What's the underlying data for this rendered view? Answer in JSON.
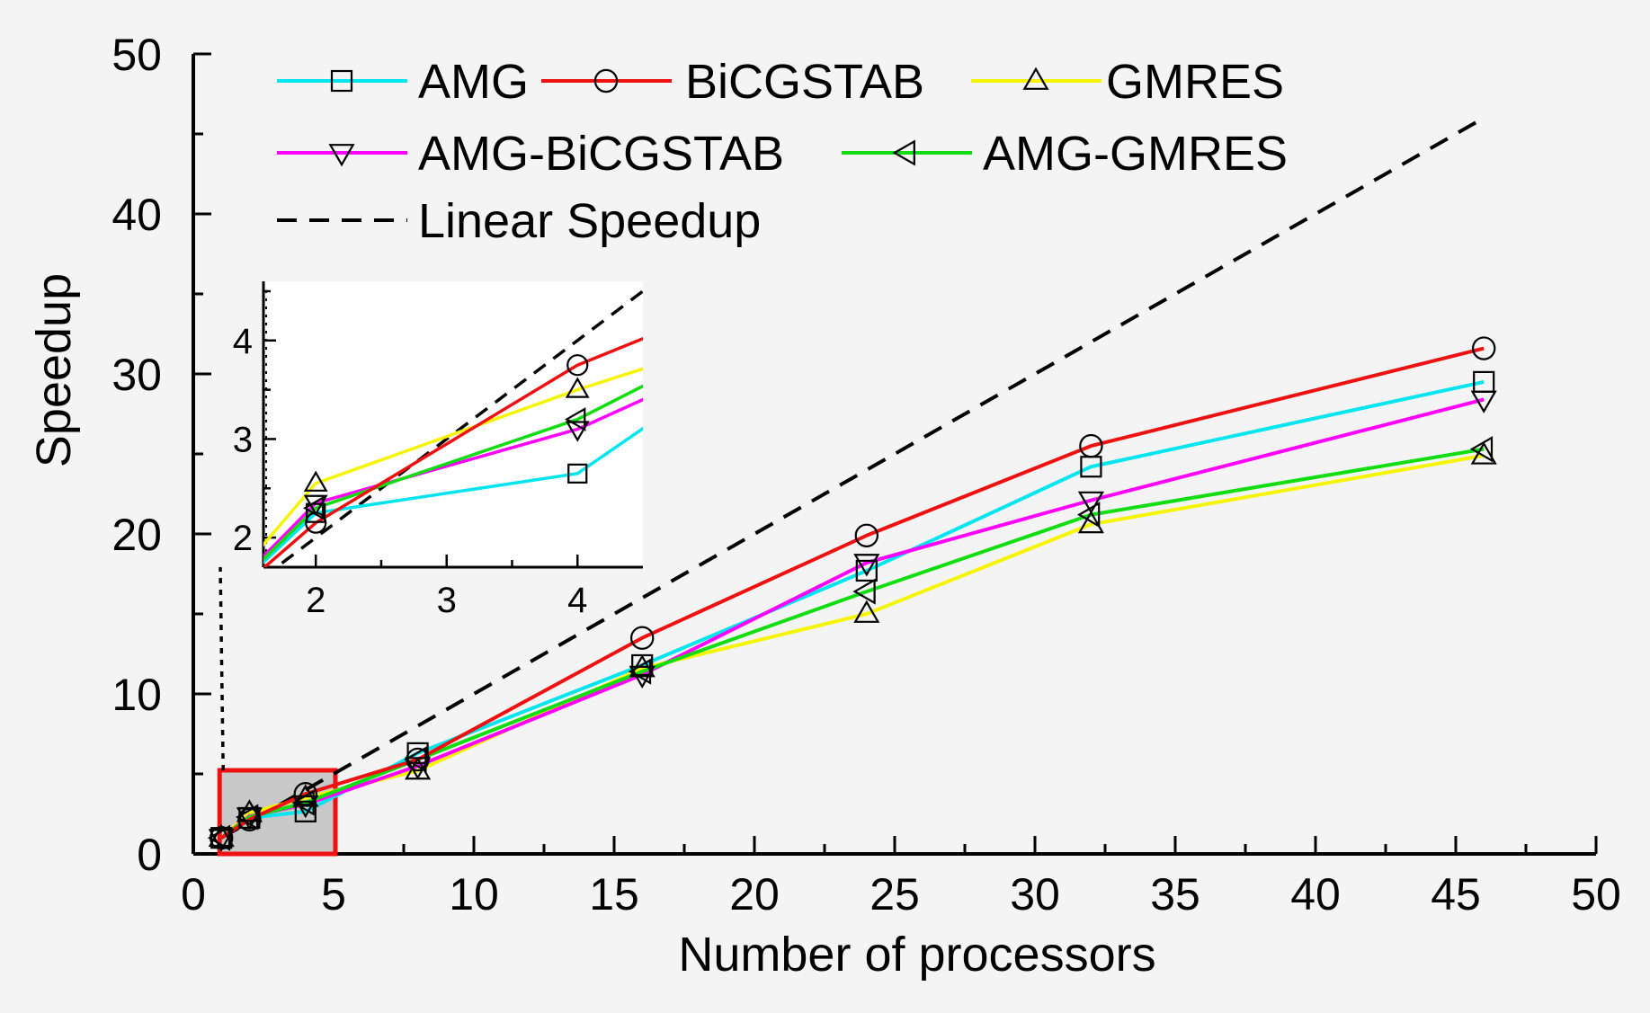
{
  "chart_data": {
    "type": "line",
    "title": "",
    "xlabel": "Number of processors",
    "ylabel": "Speedup",
    "xlim": [
      0,
      50
    ],
    "ylim": [
      0,
      50
    ],
    "xticks": [
      0,
      5,
      10,
      15,
      20,
      25,
      30,
      35,
      40,
      45,
      50
    ],
    "yticks": [
      0,
      10,
      20,
      30,
      40,
      50
    ],
    "x": [
      1,
      2,
      4,
      8,
      16,
      24,
      32,
      46
    ],
    "series": [
      {
        "name": "AMG",
        "color": "#00e5ee",
        "marker": "square",
        "values": [
          1.0,
          2.25,
          2.65,
          6.3,
          11.8,
          17.7,
          24.2,
          29.5
        ]
      },
      {
        "name": "BiCGSTAB",
        "color": "#ee1111",
        "marker": "circle",
        "values": [
          1.0,
          2.15,
          3.75,
          5.9,
          13.5,
          19.9,
          25.5,
          31.6
        ]
      },
      {
        "name": "GMRES",
        "color": "#f5f500",
        "marker": "triangle-up",
        "values": [
          1.0,
          2.55,
          3.5,
          5.2,
          11.6,
          15.0,
          20.6,
          24.9
        ]
      },
      {
        "name": "AMG-BiCGSTAB",
        "color": "#ff00ff",
        "marker": "triangle-down",
        "values": [
          1.0,
          2.35,
          3.1,
          5.5,
          11.2,
          18.2,
          22.1,
          28.4
        ]
      },
      {
        "name": "AMG-GMRES",
        "color": "#11dd11",
        "marker": "triangle-left",
        "values": [
          1.0,
          2.3,
          3.2,
          5.9,
          11.4,
          16.4,
          21.2,
          25.3
        ]
      }
    ],
    "reference_line": {
      "name": "Linear Speedup",
      "x": [
        1,
        46
      ],
      "values": [
        1,
        46
      ],
      "color": "#000000",
      "style": "dashed"
    },
    "legend": {
      "position": "top-left"
    },
    "zoom_box": {
      "x": [
        1,
        5
      ],
      "y": [
        0,
        5
      ],
      "color": "#ee1111"
    },
    "inset": {
      "xlim": [
        1.6,
        4.5
      ],
      "ylim": [
        1.7,
        4.6
      ],
      "xticks": [
        2,
        3,
        4
      ],
      "yticks": [
        2,
        3,
        4
      ]
    }
  }
}
